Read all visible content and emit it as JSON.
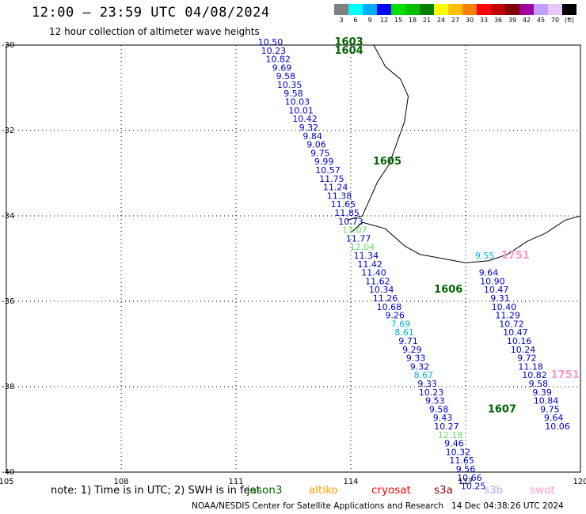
{
  "header": {
    "title": "12:00 — 23:59 UTC 04/08/2024",
    "subtitle": "12 hour collection of altimeter wave heights"
  },
  "colorbar": {
    "colors": [
      "#808080",
      "#00ffff",
      "#00b0ff",
      "#0000ff",
      "#00e000",
      "#00c000",
      "#008000",
      "#ffff00",
      "#ffc000",
      "#ff8000",
      "#ff0000",
      "#c00000",
      "#800000",
      "#a000a0",
      "#c0a0ff",
      "#e8c8f8",
      "#000000"
    ],
    "labels": [
      "3",
      "6",
      "9",
      "12",
      "15",
      "18",
      "21",
      "24",
      "27",
      "30",
      "33",
      "36",
      "39",
      "42",
      "45",
      "70",
      "(ft)"
    ]
  },
  "note": "note: 1) Time is in UTC; 2) SWH is in feet",
  "missions": [
    {
      "name": "jason3",
      "color": "#006400"
    },
    {
      "name": "altiko",
      "color": "#ff9900"
    },
    {
      "name": "cryosat",
      "color": "#ff0000"
    },
    {
      "name": "s3a",
      "color": "#8b0000"
    },
    {
      "name": "s3b",
      "color": "#c0a0ff"
    },
    {
      "name": "swot",
      "color": "#ff99cc"
    }
  ],
  "footer": "NOAA/NESDIS Center for Satellite Applications and Research   14 Dec 04:38:26 UTC 2024",
  "chart_data": {
    "type": "scatter",
    "xlim": [
      105,
      120
    ],
    "ylim": [
      -40,
      -30
    ],
    "x_ticks": [
      "105",
      "108",
      "111",
      "114",
      "117",
      "120"
    ],
    "y_ticks": [
      "-30",
      "-32",
      "-34",
      "-36",
      "-38",
      "-40"
    ],
    "grid": true,
    "units": "ft",
    "track_a": {
      "labels": [
        {
          "text": "1603",
          "lon": 113.95,
          "lat": -30.0,
          "color": "#006400"
        },
        {
          "text": "1604",
          "lon": 113.95,
          "lat": -30.2,
          "color": "#006400"
        },
        {
          "text": "1605",
          "lon": 114.95,
          "lat": -32.8,
          "color": "#006400"
        },
        {
          "text": "1606",
          "lon": 116.55,
          "lat": -35.8,
          "color": "#006400"
        },
        {
          "text": "1607",
          "lon": 117.95,
          "lat": -38.6,
          "color": "#006400"
        }
      ],
      "points": [
        {
          "lon": 111.9,
          "lat": -30.0,
          "v": "10.50",
          "c": "#0000c8"
        },
        {
          "lon": 111.98,
          "lat": -30.2,
          "v": "10.23",
          "c": "#0000c8"
        },
        {
          "lon": 112.1,
          "lat": -30.4,
          "v": "10.82",
          "c": "#0000c8"
        },
        {
          "lon": 112.2,
          "lat": -30.6,
          "v": "9.69",
          "c": "#0000c8"
        },
        {
          "lon": 112.3,
          "lat": -30.8,
          "v": "9.58",
          "c": "#0000c8"
        },
        {
          "lon": 112.4,
          "lat": -31.0,
          "v": "10.35",
          "c": "#0000c8"
        },
        {
          "lon": 112.5,
          "lat": -31.2,
          "v": "9.58",
          "c": "#0000c8"
        },
        {
          "lon": 112.6,
          "lat": -31.4,
          "v": "10.03",
          "c": "#0000c8"
        },
        {
          "lon": 112.7,
          "lat": -31.6,
          "v": "10.01",
          "c": "#0000c8"
        },
        {
          "lon": 112.8,
          "lat": -31.8,
          "v": "10.42",
          "c": "#0000c8"
        },
        {
          "lon": 112.9,
          "lat": -32.0,
          "v": "9.32",
          "c": "#0000c8"
        },
        {
          "lon": 113.0,
          "lat": -32.2,
          "v": "9.84",
          "c": "#0000c8"
        },
        {
          "lon": 113.1,
          "lat": -32.4,
          "v": "9.06",
          "c": "#0000c8"
        },
        {
          "lon": 113.2,
          "lat": -32.6,
          "v": "9.75",
          "c": "#0000c8"
        },
        {
          "lon": 113.3,
          "lat": -32.8,
          "v": "9.99",
          "c": "#0000c8"
        },
        {
          "lon": 113.4,
          "lat": -33.0,
          "v": "10.57",
          "c": "#0000c8"
        },
        {
          "lon": 113.5,
          "lat": -33.2,
          "v": "11.75",
          "c": "#0000c8"
        },
        {
          "lon": 113.6,
          "lat": -33.4,
          "v": "11.24",
          "c": "#0000c8"
        },
        {
          "lon": 113.7,
          "lat": -33.6,
          "v": "11.38",
          "c": "#0000c8"
        },
        {
          "lon": 113.8,
          "lat": -33.8,
          "v": "11.65",
          "c": "#0000c8"
        },
        {
          "lon": 113.9,
          "lat": -34.0,
          "v": "11.85",
          "c": "#0000c8"
        },
        {
          "lon": 114.0,
          "lat": -34.2,
          "v": "10.73",
          "c": "#0000c8"
        },
        {
          "lon": 114.1,
          "lat": -34.4,
          "v": "13.07",
          "c": "#66dd66"
        },
        {
          "lon": 114.2,
          "lat": -34.6,
          "v": "11.77",
          "c": "#0000c8"
        },
        {
          "lon": 114.3,
          "lat": -34.8,
          "v": "12.04",
          "c": "#66dd66"
        },
        {
          "lon": 114.4,
          "lat": -35.0,
          "v": "11.34",
          "c": "#0000c8"
        },
        {
          "lon": 114.5,
          "lat": -35.2,
          "v": "11.42",
          "c": "#0000c8"
        },
        {
          "lon": 114.6,
          "lat": -35.4,
          "v": "11.40",
          "c": "#0000c8"
        },
        {
          "lon": 114.7,
          "lat": -35.6,
          "v": "11.62",
          "c": "#0000c8"
        },
        {
          "lon": 114.8,
          "lat": -35.8,
          "v": "10.34",
          "c": "#0000c8"
        },
        {
          "lon": 114.9,
          "lat": -36.0,
          "v": "11.26",
          "c": "#0000c8"
        },
        {
          "lon": 115.0,
          "lat": -36.2,
          "v": "10.68",
          "c": "#0000c8"
        },
        {
          "lon": 115.15,
          "lat": -36.4,
          "v": "9.26",
          "c": "#0000c8"
        },
        {
          "lon": 115.3,
          "lat": -36.6,
          "v": "7.69",
          "c": "#00b0d8"
        },
        {
          "lon": 115.4,
          "lat": -36.8,
          "v": "8.61",
          "c": "#00b0d8"
        },
        {
          "lon": 115.5,
          "lat": -37.0,
          "v": "9.71",
          "c": "#0000c8"
        },
        {
          "lon": 115.6,
          "lat": -37.2,
          "v": "9.29",
          "c": "#0000c8"
        },
        {
          "lon": 115.7,
          "lat": -37.4,
          "v": "9.33",
          "c": "#0000c8"
        },
        {
          "lon": 115.8,
          "lat": -37.6,
          "v": "9.32",
          "c": "#0000c8"
        },
        {
          "lon": 115.9,
          "lat": -37.8,
          "v": "8.67",
          "c": "#00b0d8"
        },
        {
          "lon": 116.0,
          "lat": -38.0,
          "v": "9.33",
          "c": "#0000c8"
        },
        {
          "lon": 116.1,
          "lat": -38.2,
          "v": "10.23",
          "c": "#0000c8"
        },
        {
          "lon": 116.2,
          "lat": -38.4,
          "v": "9.53",
          "c": "#0000c8"
        },
        {
          "lon": 116.3,
          "lat": -38.6,
          "v": "9.58",
          "c": "#0000c8"
        },
        {
          "lon": 116.4,
          "lat": -38.8,
          "v": "9.43",
          "c": "#0000c8"
        },
        {
          "lon": 116.5,
          "lat": -39.0,
          "v": "10.27",
          "c": "#0000c8"
        },
        {
          "lon": 116.6,
          "lat": -39.2,
          "v": "12.18",
          "c": "#66dd66"
        },
        {
          "lon": 116.7,
          "lat": -39.4,
          "v": "9.46",
          "c": "#0000c8"
        },
        {
          "lon": 116.8,
          "lat": -39.6,
          "v": "10.32",
          "c": "#0000c8"
        },
        {
          "lon": 116.9,
          "lat": -39.8,
          "v": "11.65",
          "c": "#0000c8"
        },
        {
          "lon": 117.0,
          "lat": -40.0,
          "v": "9.56",
          "c": "#0000c8"
        },
        {
          "lon": 117.1,
          "lat": -40.2,
          "v": "10.66",
          "c": "#0000c8"
        },
        {
          "lon": 117.2,
          "lat": -40.4,
          "v": "10.25",
          "c": "#0000c8"
        }
      ]
    },
    "track_b": {
      "labels": [
        {
          "text": "1751",
          "lon": 118.3,
          "lat": -35.0,
          "color": "#ff99cc"
        },
        {
          "text": "1751",
          "lon": 119.6,
          "lat": -37.8,
          "color": "#ff99cc"
        }
      ],
      "points": [
        {
          "lon": 117.5,
          "lat": -35.0,
          "v": "9.55",
          "c": "#00b0d8"
        },
        {
          "lon": 117.6,
          "lat": -35.4,
          "v": "9.64",
          "c": "#0000c8"
        },
        {
          "lon": 117.7,
          "lat": -35.6,
          "v": "10.90",
          "c": "#0000c8"
        },
        {
          "lon": 117.8,
          "lat": -35.8,
          "v": "10.47",
          "c": "#0000c8"
        },
        {
          "lon": 117.9,
          "lat": -36.0,
          "v": "9.31",
          "c": "#0000c8"
        },
        {
          "lon": 118.0,
          "lat": -36.2,
          "v": "10.40",
          "c": "#0000c8"
        },
        {
          "lon": 118.1,
          "lat": -36.4,
          "v": "11.29",
          "c": "#0000c8"
        },
        {
          "lon": 118.2,
          "lat": -36.6,
          "v": "10.72",
          "c": "#0000c8"
        },
        {
          "lon": 118.3,
          "lat": -36.8,
          "v": "10.47",
          "c": "#0000c8"
        },
        {
          "lon": 118.4,
          "lat": -37.0,
          "v": "10.16",
          "c": "#0000c8"
        },
        {
          "lon": 118.5,
          "lat": -37.2,
          "v": "10.24",
          "c": "#0000c8"
        },
        {
          "lon": 118.6,
          "lat": -37.4,
          "v": "9.72",
          "c": "#0000c8"
        },
        {
          "lon": 118.7,
          "lat": -37.6,
          "v": "11.18",
          "c": "#0000c8"
        },
        {
          "lon": 118.8,
          "lat": -37.8,
          "v": "10.82",
          "c": "#0000c8"
        },
        {
          "lon": 118.9,
          "lat": -38.0,
          "v": "9.58",
          "c": "#0000c8"
        },
        {
          "lon": 119.0,
          "lat": -38.2,
          "v": "9.39",
          "c": "#0000c8"
        },
        {
          "lon": 119.1,
          "lat": -38.4,
          "v": "10.84",
          "c": "#0000c8"
        },
        {
          "lon": 119.2,
          "lat": -38.6,
          "v": "9.75",
          "c": "#0000c8"
        },
        {
          "lon": 119.3,
          "lat": -38.8,
          "v": "9.64",
          "c": "#0000c8"
        },
        {
          "lon": 119.4,
          "lat": -39.0,
          "v": "10.06",
          "c": "#0000c8"
        }
      ]
    }
  }
}
